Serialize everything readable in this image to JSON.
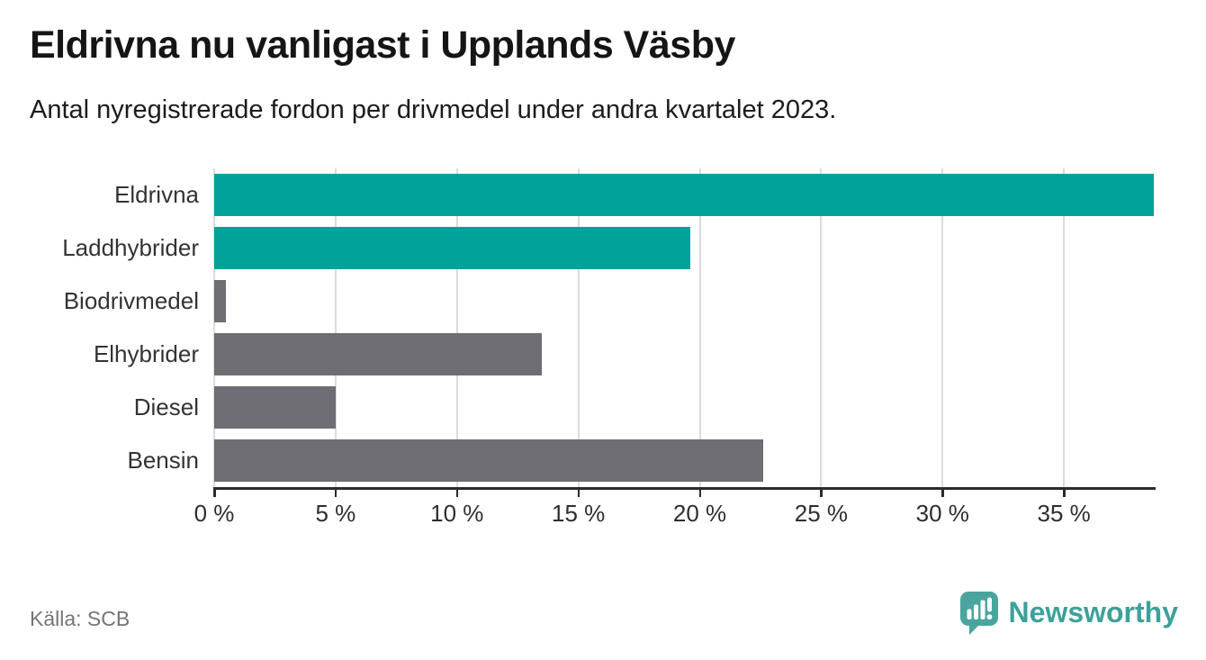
{
  "header": {
    "title": "Eldrivna nu vanligast i Upplands Väsby",
    "subtitle": "Antal nyregistrerade fordon per drivmedel under andra kvartalet 2023."
  },
  "footer": {
    "source": "Källa: SCB",
    "logo_text": "Newsworthy"
  },
  "colors": {
    "accent_teal": "#00a29a",
    "neutral_gray": "#6e6d73",
    "gridline": "#dcdcdc",
    "axis": "#2b2b2b",
    "logo_teal": "#4ba59e",
    "logo_text_teal": "#3da19a"
  },
  "chart_data": {
    "type": "bar",
    "orientation": "horizontal",
    "title": "Eldrivna nu vanligast i Upplands Väsby",
    "subtitle": "Antal nyregistrerade fordon per drivmedel under andra kvartalet 2023.",
    "categories": [
      "Eldrivna",
      "Laddhybrider",
      "Biodrivmedel",
      "Elhybrider",
      "Diesel",
      "Bensin"
    ],
    "values": [
      38.7,
      19.6,
      0.5,
      13.5,
      5.0,
      22.6
    ],
    "unit": "%",
    "bar_color_keys": [
      "accent_teal",
      "accent_teal",
      "neutral_gray",
      "neutral_gray",
      "neutral_gray",
      "neutral_gray"
    ],
    "xlim": [
      0,
      38.7
    ],
    "xticks": [
      0,
      5,
      10,
      15,
      20,
      25,
      30,
      35
    ],
    "xtick_labels": [
      "0 %",
      "5 %",
      "10 %",
      "15 %",
      "20 %",
      "25 %",
      "30 %",
      "35 %"
    ],
    "grid": true,
    "legend": false,
    "source": "Källa: SCB"
  }
}
